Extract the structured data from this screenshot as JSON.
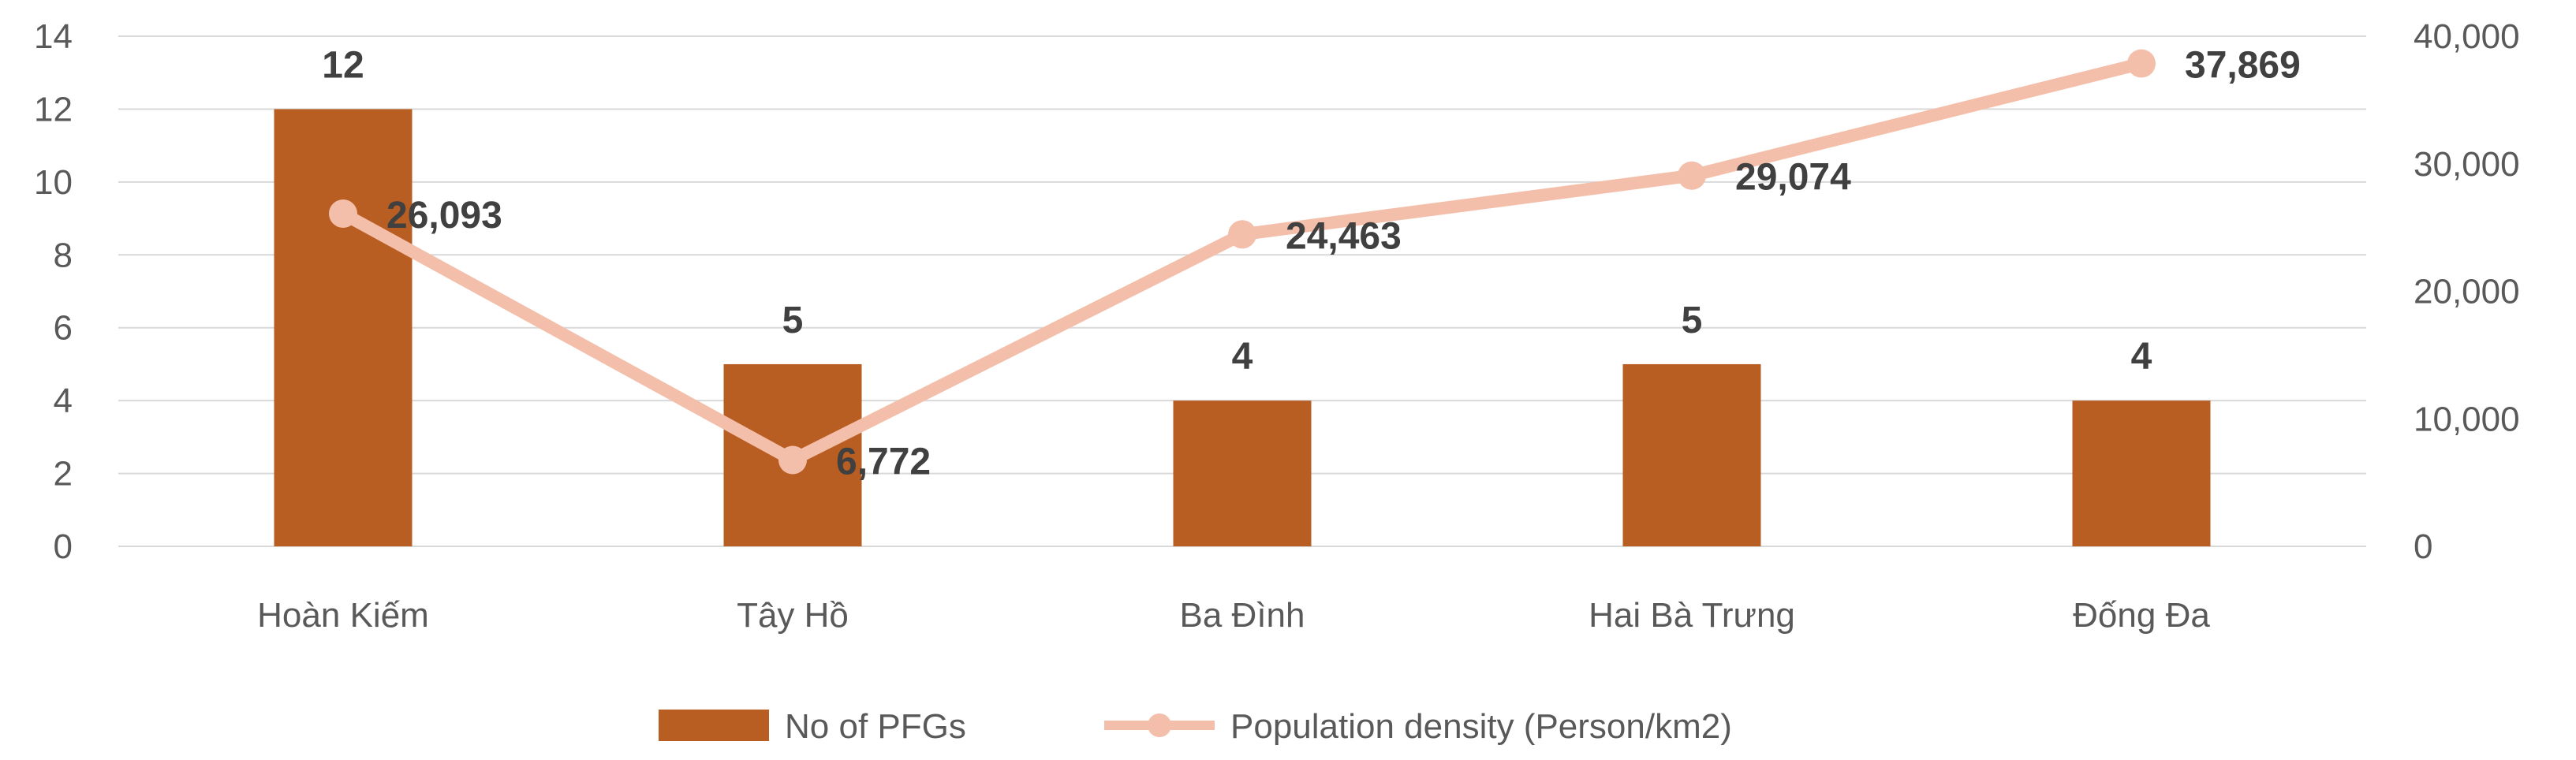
{
  "chart_data": {
    "type": "bar",
    "categories": [
      "Hoàn Kiếm",
      "Tây Hồ",
      "Ba Đình",
      "Hai Bà Trưng",
      "Đống Đa"
    ],
    "series": [
      {
        "name": "No of PFGs",
        "type": "bar",
        "axis": "left",
        "values": [
          12,
          5,
          4,
          5,
          4
        ],
        "labels": [
          "12",
          "5",
          "4",
          "5",
          "4"
        ],
        "color": "#B85E22"
      },
      {
        "name": "Population density (Person/km2)",
        "type": "line",
        "axis": "right",
        "values": [
          26093,
          6772,
          24463,
          29074,
          37869
        ],
        "labels": [
          "26,093",
          "6,772",
          "24,463",
          "29,074",
          "37,869"
        ],
        "color": "#F4BFAA"
      }
    ],
    "y_left": {
      "min": 0,
      "max": 14,
      "ticks": [
        "0",
        "2",
        "4",
        "6",
        "8",
        "10",
        "12",
        "14"
      ]
    },
    "y_right": {
      "min": 0,
      "max": 40000,
      "ticks": [
        "0",
        "10,000",
        "20,000",
        "30,000",
        "40,000"
      ]
    },
    "grid": true,
    "legend": "bottom-center",
    "gridline_color": "#D9D9D9"
  }
}
